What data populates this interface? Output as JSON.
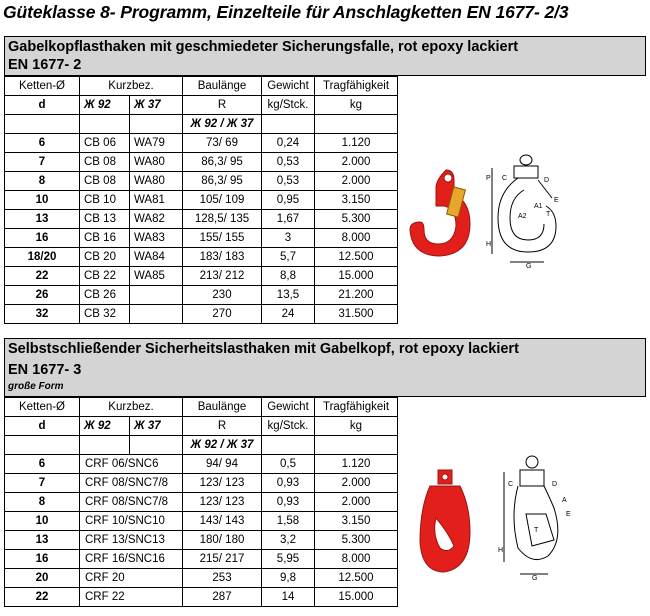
{
  "title": "Güteklasse 8- Programm, Einzelteile für Anschlagketten EN 1677- 2/3",
  "section1": {
    "heading": "Gabelkopflasthaken mit geschmiedeter Sicherungsfalle, rot epoxy lackiert",
    "standard": "EN 1677- 2",
    "headers": [
      "Ketten-Ø",
      "Kurzbez.",
      "Baulänge",
      "Gewicht",
      "Tragfähigkeit"
    ],
    "units": [
      "d",
      "Ж 92",
      "Ж 37",
      "R",
      "kg/Stck.",
      "kg"
    ],
    "subheader": "Ж 92 / Ж 37",
    "rows": [
      {
        "d": "6",
        "k92": "CB 06",
        "k37": "WA79",
        "r": "73/ 69",
        "w": "0,24",
        "t": "1.120"
      },
      {
        "d": "7",
        "k92": "CB 08",
        "k37": "WA80",
        "r": "86,3/ 95",
        "w": "0,53",
        "t": "2.000"
      },
      {
        "d": "8",
        "k92": "CB 08",
        "k37": "WA80",
        "r": "86,3/ 95",
        "w": "0,53",
        "t": "2.000"
      },
      {
        "d": "10",
        "k92": "CB 10",
        "k37": "WA81",
        "r": "105/ 109",
        "w": "0,95",
        "t": "3.150"
      },
      {
        "d": "13",
        "k92": "CB 13",
        "k37": "WA82",
        "r": "128,5/ 135",
        "w": "1,67",
        "t": "5.300"
      },
      {
        "d": "16",
        "k92": "CB 16",
        "k37": "WA83",
        "r": "155/ 155",
        "w": "3",
        "t": "8.000"
      },
      {
        "d": "18/20",
        "k92": "CB 20",
        "k37": "WA84",
        "r": "183/ 183",
        "w": "5,7",
        "t": "12.500"
      },
      {
        "d": "22",
        "k92": "CB 22",
        "k37": "WA85",
        "r": "213/ 212",
        "w": "8,8",
        "t": "15.000"
      },
      {
        "d": "26",
        "k92": "CB 26",
        "k37": "",
        "r": "230",
        "w": "13,5",
        "t": "21.200"
      },
      {
        "d": "32",
        "k92": "CB 32",
        "k37": "",
        "r": "270",
        "w": "24",
        "t": "31.500"
      }
    ]
  },
  "section2": {
    "heading": "Selbstschließender Sicherheitslasthaken mit Gabelkopf, rot epoxy lackiert",
    "standard": "EN 1677- 3",
    "subtitle": "große Form",
    "headers": [
      "Ketten-Ø",
      "Kurzbez.",
      "Baulänge",
      "Gewicht",
      "Tragfähigkeit"
    ],
    "units": [
      "d",
      "Ж 92",
      "Ж 37",
      "R",
      "kg/Stck.",
      "kg"
    ],
    "subheader": "Ж 92 / Ж 37",
    "rows": [
      {
        "d": "6",
        "k": "CRF 06/SNC6",
        "r": "94/ 94",
        "w": "0,5",
        "t": "1.120"
      },
      {
        "d": "7",
        "k": "CRF 08/SNC7/8",
        "r": "123/ 123",
        "w": "0,93",
        "t": "2.000"
      },
      {
        "d": "8",
        "k": "CRF 08/SNC7/8",
        "r": "123/ 123",
        "w": "0,93",
        "t": "2.000"
      },
      {
        "d": "10",
        "k": "CRF 10/SNC10",
        "r": "143/ 143",
        "w": "1,58",
        "t": "3.150"
      },
      {
        "d": "13",
        "k": "CRF 13/SNC13",
        "r": "180/ 180",
        "w": "3,2",
        "t": "5.300"
      },
      {
        "d": "16",
        "k": "CRF 16/SNC16",
        "r": "215/ 217",
        "w": "5,95",
        "t": "8.000"
      },
      {
        "d": "20",
        "k": "CRF 20",
        "r": "253",
        "w": "9,8",
        "t": "12.500"
      },
      {
        "d": "22",
        "k": "CRF 22",
        "r": "287",
        "w": "14",
        "t": "15.000"
      }
    ]
  },
  "diagram_labels": {
    "d1": [
      "P",
      "C",
      "D",
      "E",
      "T",
      "A1",
      "A2",
      "H",
      "G"
    ],
    "d2": [
      "C",
      "D",
      "A",
      "E",
      "T",
      "H",
      "G"
    ]
  },
  "colors": {
    "hook_red": "#e21f1a",
    "header_gray": "#d4d4d4"
  }
}
